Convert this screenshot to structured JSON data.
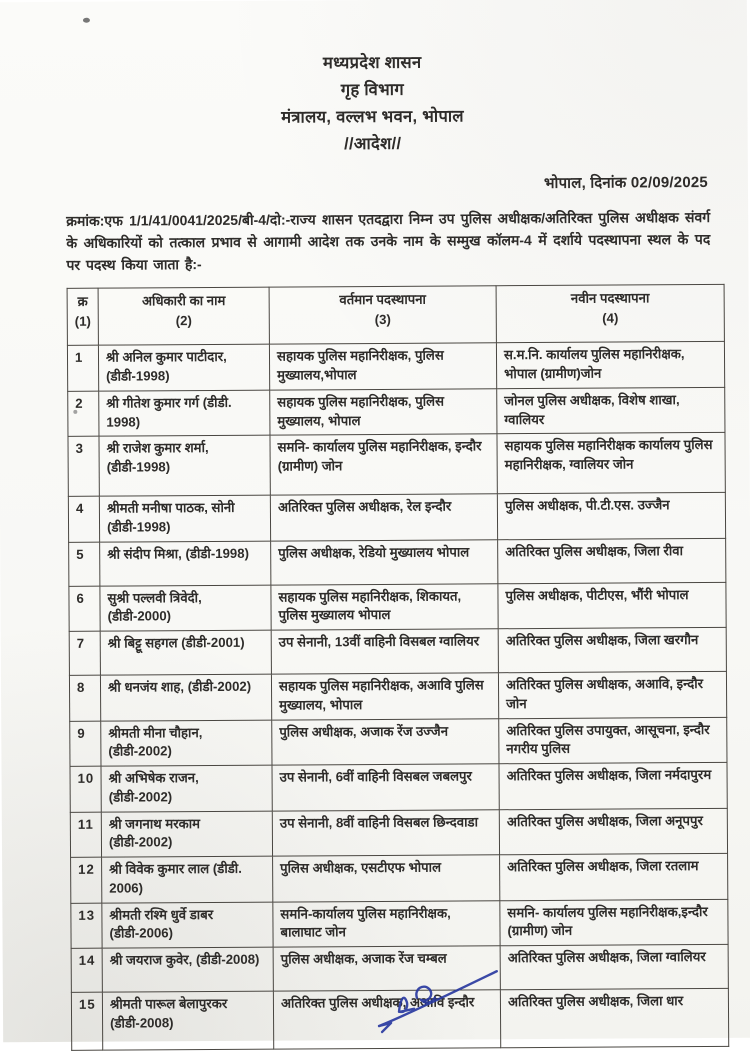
{
  "document": {
    "header": {
      "line1": "मध्यप्रदेश शासन",
      "line2": "गृह विभाग",
      "line3": "मंत्रालय, वल्लभ भवन, भोपाल",
      "line4": "//आदेश//"
    },
    "dateline": "भोपाल, दिनांक 02/09/2025",
    "order_text": "क्रमांक:एफ 1/1/41/0041/2025/बी-4/दो:-राज्य शासन एतदद्वारा निम्न उप पुलिस अधीक्षक/अतिरिक्त पुलिस अधीक्षक संवर्ग के अधिकारियों को तत्काल प्रभाव से आगामी आदेश तक उनके नाम के सम्मुख कॉलम-4 में दर्शाये पदस्थापना स्थल के पद पर पदस्थ किया जाता है:-"
  },
  "table": {
    "headers": [
      {
        "label": "क्र",
        "num": "(1)"
      },
      {
        "label": "अधिकारी का नाम",
        "num": "(2)"
      },
      {
        "label": "वर्तमान पदस्थापना",
        "num": "(3)"
      },
      {
        "label": "नवीन पदस्थापना",
        "num": "(4)"
      }
    ],
    "rows": [
      {
        "sn": "1",
        "name": "श्री अनिल कुमार पाटीदार, (डीडी-1998)",
        "current": "सहायक पुलिस महानिरीक्षक, पुलिस मुख्यालय,भोपाल",
        "next": "स.म.नि. कार्यालय पुलिस महानिरीक्षक, भोपाल (ग्रामीण)जोन"
      },
      {
        "sn": "2",
        "name": "श्री गीतेश कुमार गर्ग (डीडी. 1998)",
        "current": "सहायक पुलिस महानिरीक्षक, पुलिस मुख्यालय, भोपाल",
        "next": "जोनल पुलिस अधीक्षक, विशेष शाखा, ग्वालियर"
      },
      {
        "sn": "3",
        "name": "श्री राजेश कुमार शर्मा, (डीडी-1998)",
        "current": "समनि- कार्यालय पुलिस महानिरीक्षक, इन्दौर (ग्रामीण) जोन",
        "next": "सहायक पुलिस महानिरीक्षक कार्यालय पुलिस महानिरीक्षक, ग्वालियर जोन"
      },
      {
        "sn": "4",
        "name": "श्रीमती मनीषा पाठक, सोनी (डीडी-1998)",
        "current": "अतिरिक्त पुलिस अधीक्षक, रेल इन्दौर",
        "next": "पुलिस अधीक्षक, पी.टी.एस. उज्जैन"
      },
      {
        "sn": "5",
        "name": "श्री संदीप मिश्रा, (डीडी-1998)",
        "current": "पुलिस अधीक्षक, रेडियो मुख्यालय भोपाल",
        "next": "अतिरिक्त पुलिस अधीक्षक, जिला रीवा"
      },
      {
        "sn": "6",
        "name": "सुश्री पल्लवी त्रिवेदी, (डीडी-2000)",
        "current": "सहायक पुलिस महानिरीक्षक, शिकायत, पुलिस मुख्यालय भोपाल",
        "next": "पुलिस अधीक्षक, पीटीएस, भौंरी भोपाल"
      },
      {
        "sn": "7",
        "name": "श्री बिट्टू सहगल (डीडी-2001)",
        "current": "उप सेनानी, 13वीं वाहिनी विसबल ग्वालियर",
        "next": "अतिरिक्त पुलिस अधीक्षक, जिला खरगौन"
      },
      {
        "sn": "8",
        "name": "श्री धनजंय शाह, (डीडी-2002)",
        "current": "सहायक पुलिस महानिरीक्षक, अआवि पुलिस मुख्यालय, भोपाल",
        "next": "अतिरिक्त पुलिस अधीक्षक, अआवि, इन्दौर जोन"
      },
      {
        "sn": "9",
        "name": "श्रीमती मीना चौहान, (डीडी-2002)",
        "current": "पुलिस अधीक्षक, अजाक रेंज उज्जैन",
        "next": "अतिरिक्त पुलिस उपायुक्त, आसूचना, इन्दौर नगरीय पुलिस"
      },
      {
        "sn": "10",
        "name": "श्री अभिषेक राजन, (डीडी-2002)",
        "current": "उप सेनानी, 6वीं वाहिनी विसबल जबलपुर",
        "next": "अतिरिक्त पुलिस अधीक्षक, जिला नर्मदापुरम"
      },
      {
        "sn": "11",
        "name": "श्री जगनाथ मरकाम (डीडी-2002)",
        "current": "उप सेनानी, 8वीं वाहिनी विसबल छिन्दवाडा",
        "next": "अतिरिक्त पुलिस अधीक्षक, जिला अनूपपुर"
      },
      {
        "sn": "12",
        "name": "श्री विवेक कुमार लाल (डीडी. 2006)",
        "current": "पुलिस अधीक्षक, एसटीएफ भोपाल",
        "next": "अतिरिक्त पुलिस अधीक्षक, जिला रतलाम"
      },
      {
        "sn": "13",
        "name": "श्रीमती रश्मि धुर्वे डाबर (डीडी-2006)",
        "current": "समनि-कार्यालय पुलिस महानिरीक्षक, बालाघाट जोन",
        "next": "समनि- कार्यालय पुलिस महानिरीक्षक,इन्दौर (ग्रामीण) जोन"
      },
      {
        "sn": "14",
        "name": "श्री जयराज कुवेर, (डीडी-2008)",
        "current": "पुलिस अधीक्षक, अजाक रेंज चम्बल",
        "next": "अतिरिक्त पुलिस अधीक्षक, जिला ग्वालियर"
      },
      {
        "sn": "15",
        "name": "श्रीमती पारूल बेलापुरकर (डीडी-2008)",
        "current": "अतिरिक्त पुलिस अधीक्षक, अआवि इन्दौर",
        "next": "अतिरिक्त पुलिस अधीक्षक, जिला धार"
      }
    ]
  },
  "signature": {
    "ink_color": "#2a3aa0"
  },
  "colors": {
    "ink": "#2e2c2a",
    "table_border": "#4a4742",
    "paper": "#f8f8f5"
  }
}
